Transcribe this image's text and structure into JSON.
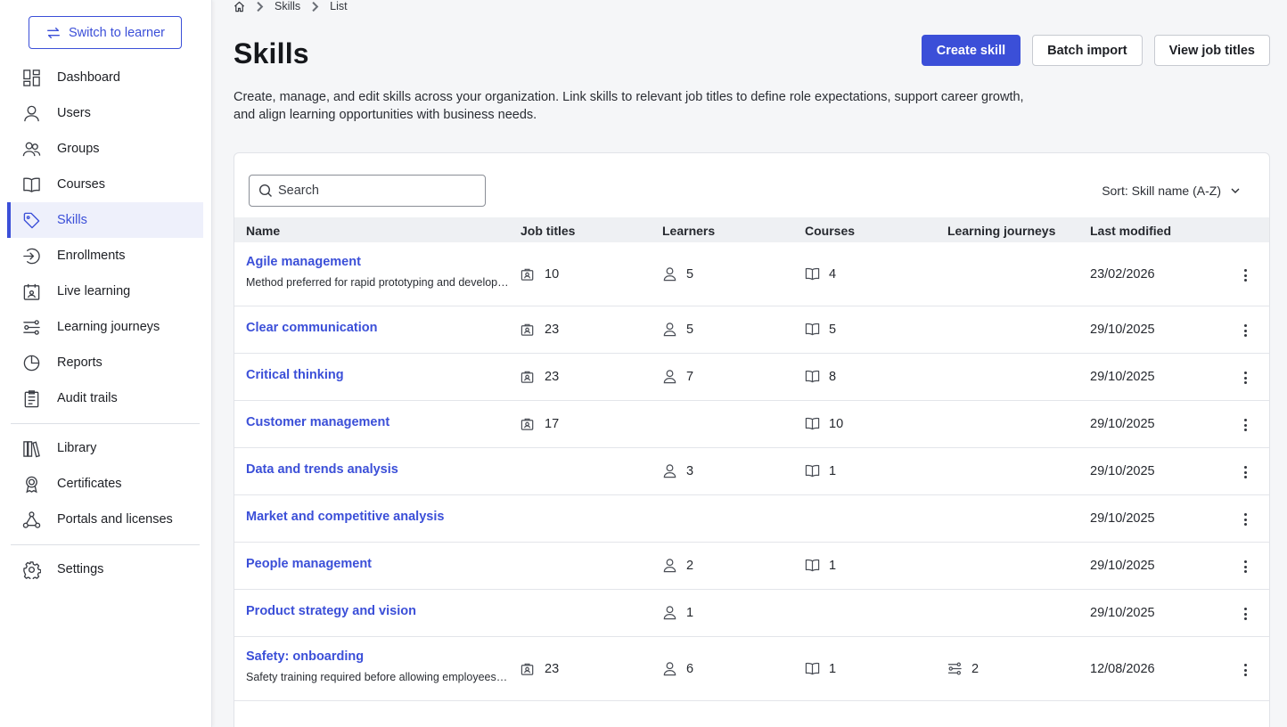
{
  "sidebar": {
    "switch_label": "Switch to learner",
    "items": [
      {
        "label": "Dashboard",
        "icon": "dashboard-icon"
      },
      {
        "label": "Users",
        "icon": "user-icon"
      },
      {
        "label": "Groups",
        "icon": "groups-icon"
      },
      {
        "label": "Courses",
        "icon": "book-icon"
      },
      {
        "label": "Skills",
        "icon": "tag-icon",
        "active": true
      },
      {
        "label": "Enrollments",
        "icon": "enroll-icon"
      },
      {
        "label": "Live learning",
        "icon": "calendar-icon"
      },
      {
        "label": "Learning journeys",
        "icon": "journey-icon"
      },
      {
        "label": "Reports",
        "icon": "pie-icon"
      },
      {
        "label": "Audit trails",
        "icon": "clipboard-icon"
      },
      {
        "label": "Library",
        "icon": "library-icon"
      },
      {
        "label": "Certificates",
        "icon": "award-icon"
      },
      {
        "label": "Portals and licenses",
        "icon": "network-icon"
      },
      {
        "label": "Settings",
        "icon": "gear-icon"
      }
    ]
  },
  "breadcrumb": {
    "items": [
      "Skills",
      "List"
    ]
  },
  "header": {
    "title": "Skills",
    "description": "Create, manage, and edit skills across your organization. Link skills to relevant job titles to define role expectations, support career growth, and align learning opportunities with business needs.",
    "create_label": "Create skill",
    "import_label": "Batch import",
    "view_label": "View job titles"
  },
  "toolbar": {
    "search_placeholder": "Search",
    "sort_label": "Sort: Skill name (A-Z)"
  },
  "table": {
    "columns": [
      "Name",
      "Job titles",
      "Learners",
      "Courses",
      "Learning journeys",
      "Last modified"
    ],
    "rows": [
      {
        "name": "Agile management",
        "description": "Method preferred for rapid prototyping and development of products",
        "job_titles": "10",
        "learners": "5",
        "courses": "4",
        "journeys": "",
        "modified": "23/02/2026"
      },
      {
        "name": "Clear communication",
        "description": "",
        "job_titles": "23",
        "learners": "5",
        "courses": "5",
        "journeys": "",
        "modified": "29/10/2025"
      },
      {
        "name": "Critical thinking",
        "description": "",
        "job_titles": "23",
        "learners": "7",
        "courses": "8",
        "journeys": "",
        "modified": "29/10/2025"
      },
      {
        "name": "Customer management",
        "description": "",
        "job_titles": "17",
        "learners": "",
        "courses": "10",
        "journeys": "",
        "modified": "29/10/2025"
      },
      {
        "name": "Data and trends analysis",
        "description": "",
        "job_titles": "",
        "learners": "3",
        "courses": "1",
        "journeys": "",
        "modified": "29/10/2025"
      },
      {
        "name": "Market and competitive analysis",
        "description": "",
        "job_titles": "",
        "learners": "",
        "courses": "",
        "journeys": "",
        "modified": "29/10/2025"
      },
      {
        "name": "People management",
        "description": "",
        "job_titles": "",
        "learners": "2",
        "courses": "1",
        "journeys": "",
        "modified": "29/10/2025"
      },
      {
        "name": "Product strategy and vision",
        "description": "",
        "job_titles": "",
        "learners": "1",
        "courses": "",
        "journeys": "",
        "modified": "29/10/2025"
      },
      {
        "name": "Safety: onboarding",
        "description": "Safety training required before allowing employees on site",
        "job_titles": "23",
        "learners": "6",
        "courses": "1",
        "journeys": "2",
        "modified": "12/08/2026"
      }
    ]
  },
  "colors": {
    "accent": "#3b4fd8"
  }
}
